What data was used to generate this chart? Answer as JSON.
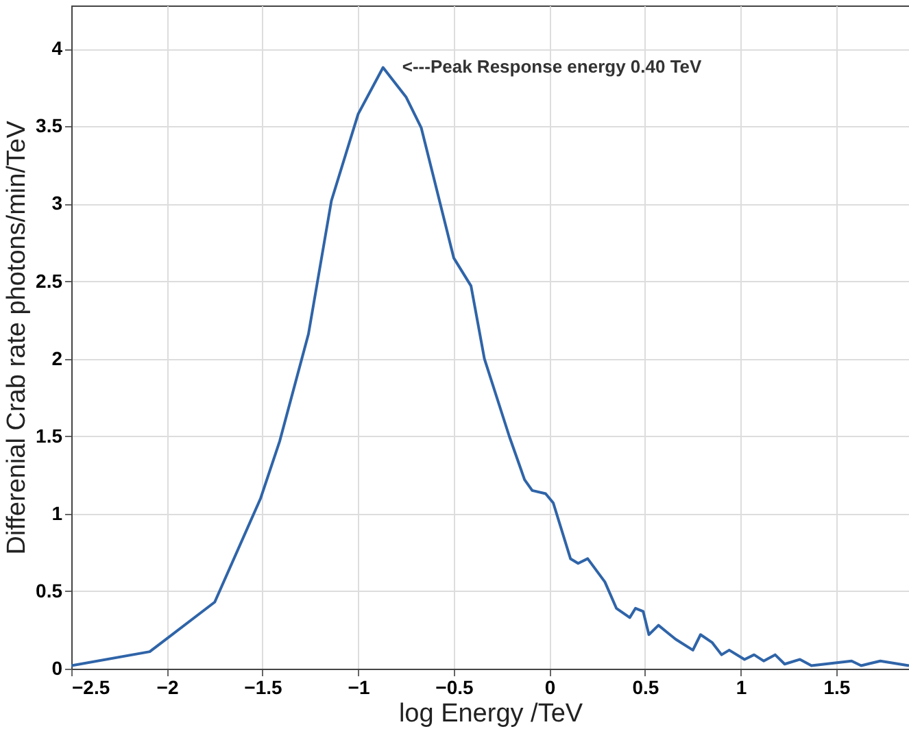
{
  "chart_data": {
    "type": "line",
    "xlabel": "log Energy /TeV",
    "ylabel": "Differenial Crab rate photons/min/TeV",
    "x": [
      -2.5,
      -2.09,
      -1.75,
      -1.51,
      -1.41,
      -1.26,
      -1.14,
      -1.0,
      -0.87,
      -0.75,
      -0.67,
      -0.5,
      -0.41,
      -0.34,
      -0.21,
      -0.13,
      -0.09,
      -0.02,
      0.02,
      0.11,
      0.15,
      0.2,
      0.29,
      0.35,
      0.42,
      0.45,
      0.49,
      0.52,
      0.57,
      0.62,
      0.66,
      0.75,
      0.79,
      0.85,
      0.9,
      0.94,
      1.02,
      1.07,
      1.12,
      1.18,
      1.23,
      1.31,
      1.37,
      1.58,
      1.63,
      1.73,
      1.88
    ],
    "series": [
      {
        "color": "#2f64a8",
        "values": [
          0.02,
          0.11,
          0.43,
          1.1,
          1.47,
          2.16,
          3.02,
          3.58,
          3.88,
          3.69,
          3.49,
          2.65,
          2.47,
          2.0,
          1.5,
          1.22,
          1.15,
          1.13,
          1.07,
          0.71,
          0.68,
          0.71,
          0.56,
          0.39,
          0.33,
          0.39,
          0.37,
          0.22,
          0.28,
          0.23,
          0.19,
          0.12,
          0.22,
          0.17,
          0.09,
          0.12,
          0.06,
          0.09,
          0.05,
          0.09,
          0.03,
          0.06,
          0.02,
          0.05,
          0.02,
          0.05,
          0.02
        ]
      }
    ],
    "xlim": [
      -2.5,
      1.88
    ],
    "xticks": [
      -2.5,
      -2,
      -1.5,
      -1,
      -0.5,
      0,
      0.5,
      1,
      1.5
    ],
    "ylim": [
      0,
      4.28
    ],
    "yticks": [
      0,
      0.5,
      1,
      1.5,
      2,
      2.5,
      3,
      3.5,
      4
    ],
    "grid": true,
    "marker": "none",
    "line_style": "solid",
    "annotations": [
      {
        "text": "<---Peak Response energy 0.40 TeV",
        "x": -0.87,
        "y": 3.88
      }
    ]
  }
}
